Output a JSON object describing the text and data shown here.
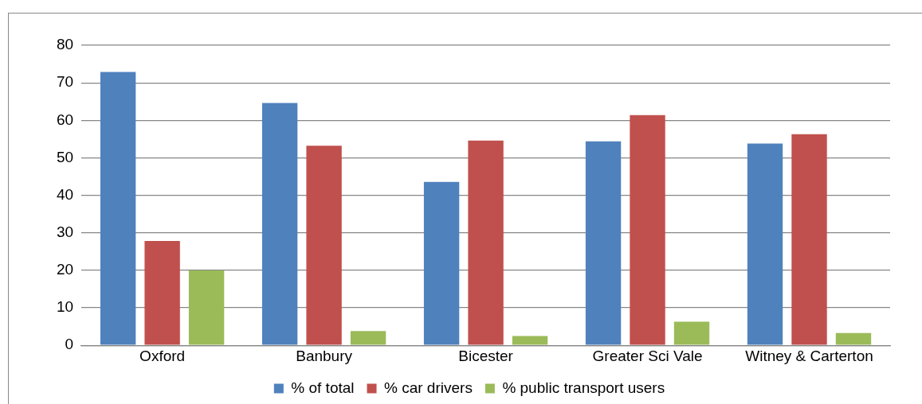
{
  "chart_data": {
    "type": "bar",
    "categories": [
      "Oxford",
      "Banbury",
      "Bicester",
      "Greater Sci Vale",
      "Witney & Carterton"
    ],
    "series": [
      {
        "name": "% of total",
        "color": "#4f81bd",
        "values": [
          72.9,
          64.6,
          43.6,
          54.4,
          53.8
        ]
      },
      {
        "name": "% car drivers",
        "color": "#c0504d",
        "values": [
          27.8,
          53.2,
          54.6,
          61.4,
          56.3
        ]
      },
      {
        "name": "% public transport users",
        "color": "#9bbb59",
        "values": [
          20.0,
          3.8,
          2.5,
          6.3,
          3.3
        ]
      }
    ],
    "ylim": [
      0,
      80
    ],
    "yticks": [
      0,
      10,
      20,
      30,
      40,
      50,
      60,
      70,
      80
    ],
    "grid": "y",
    "legend": "bottom"
  }
}
